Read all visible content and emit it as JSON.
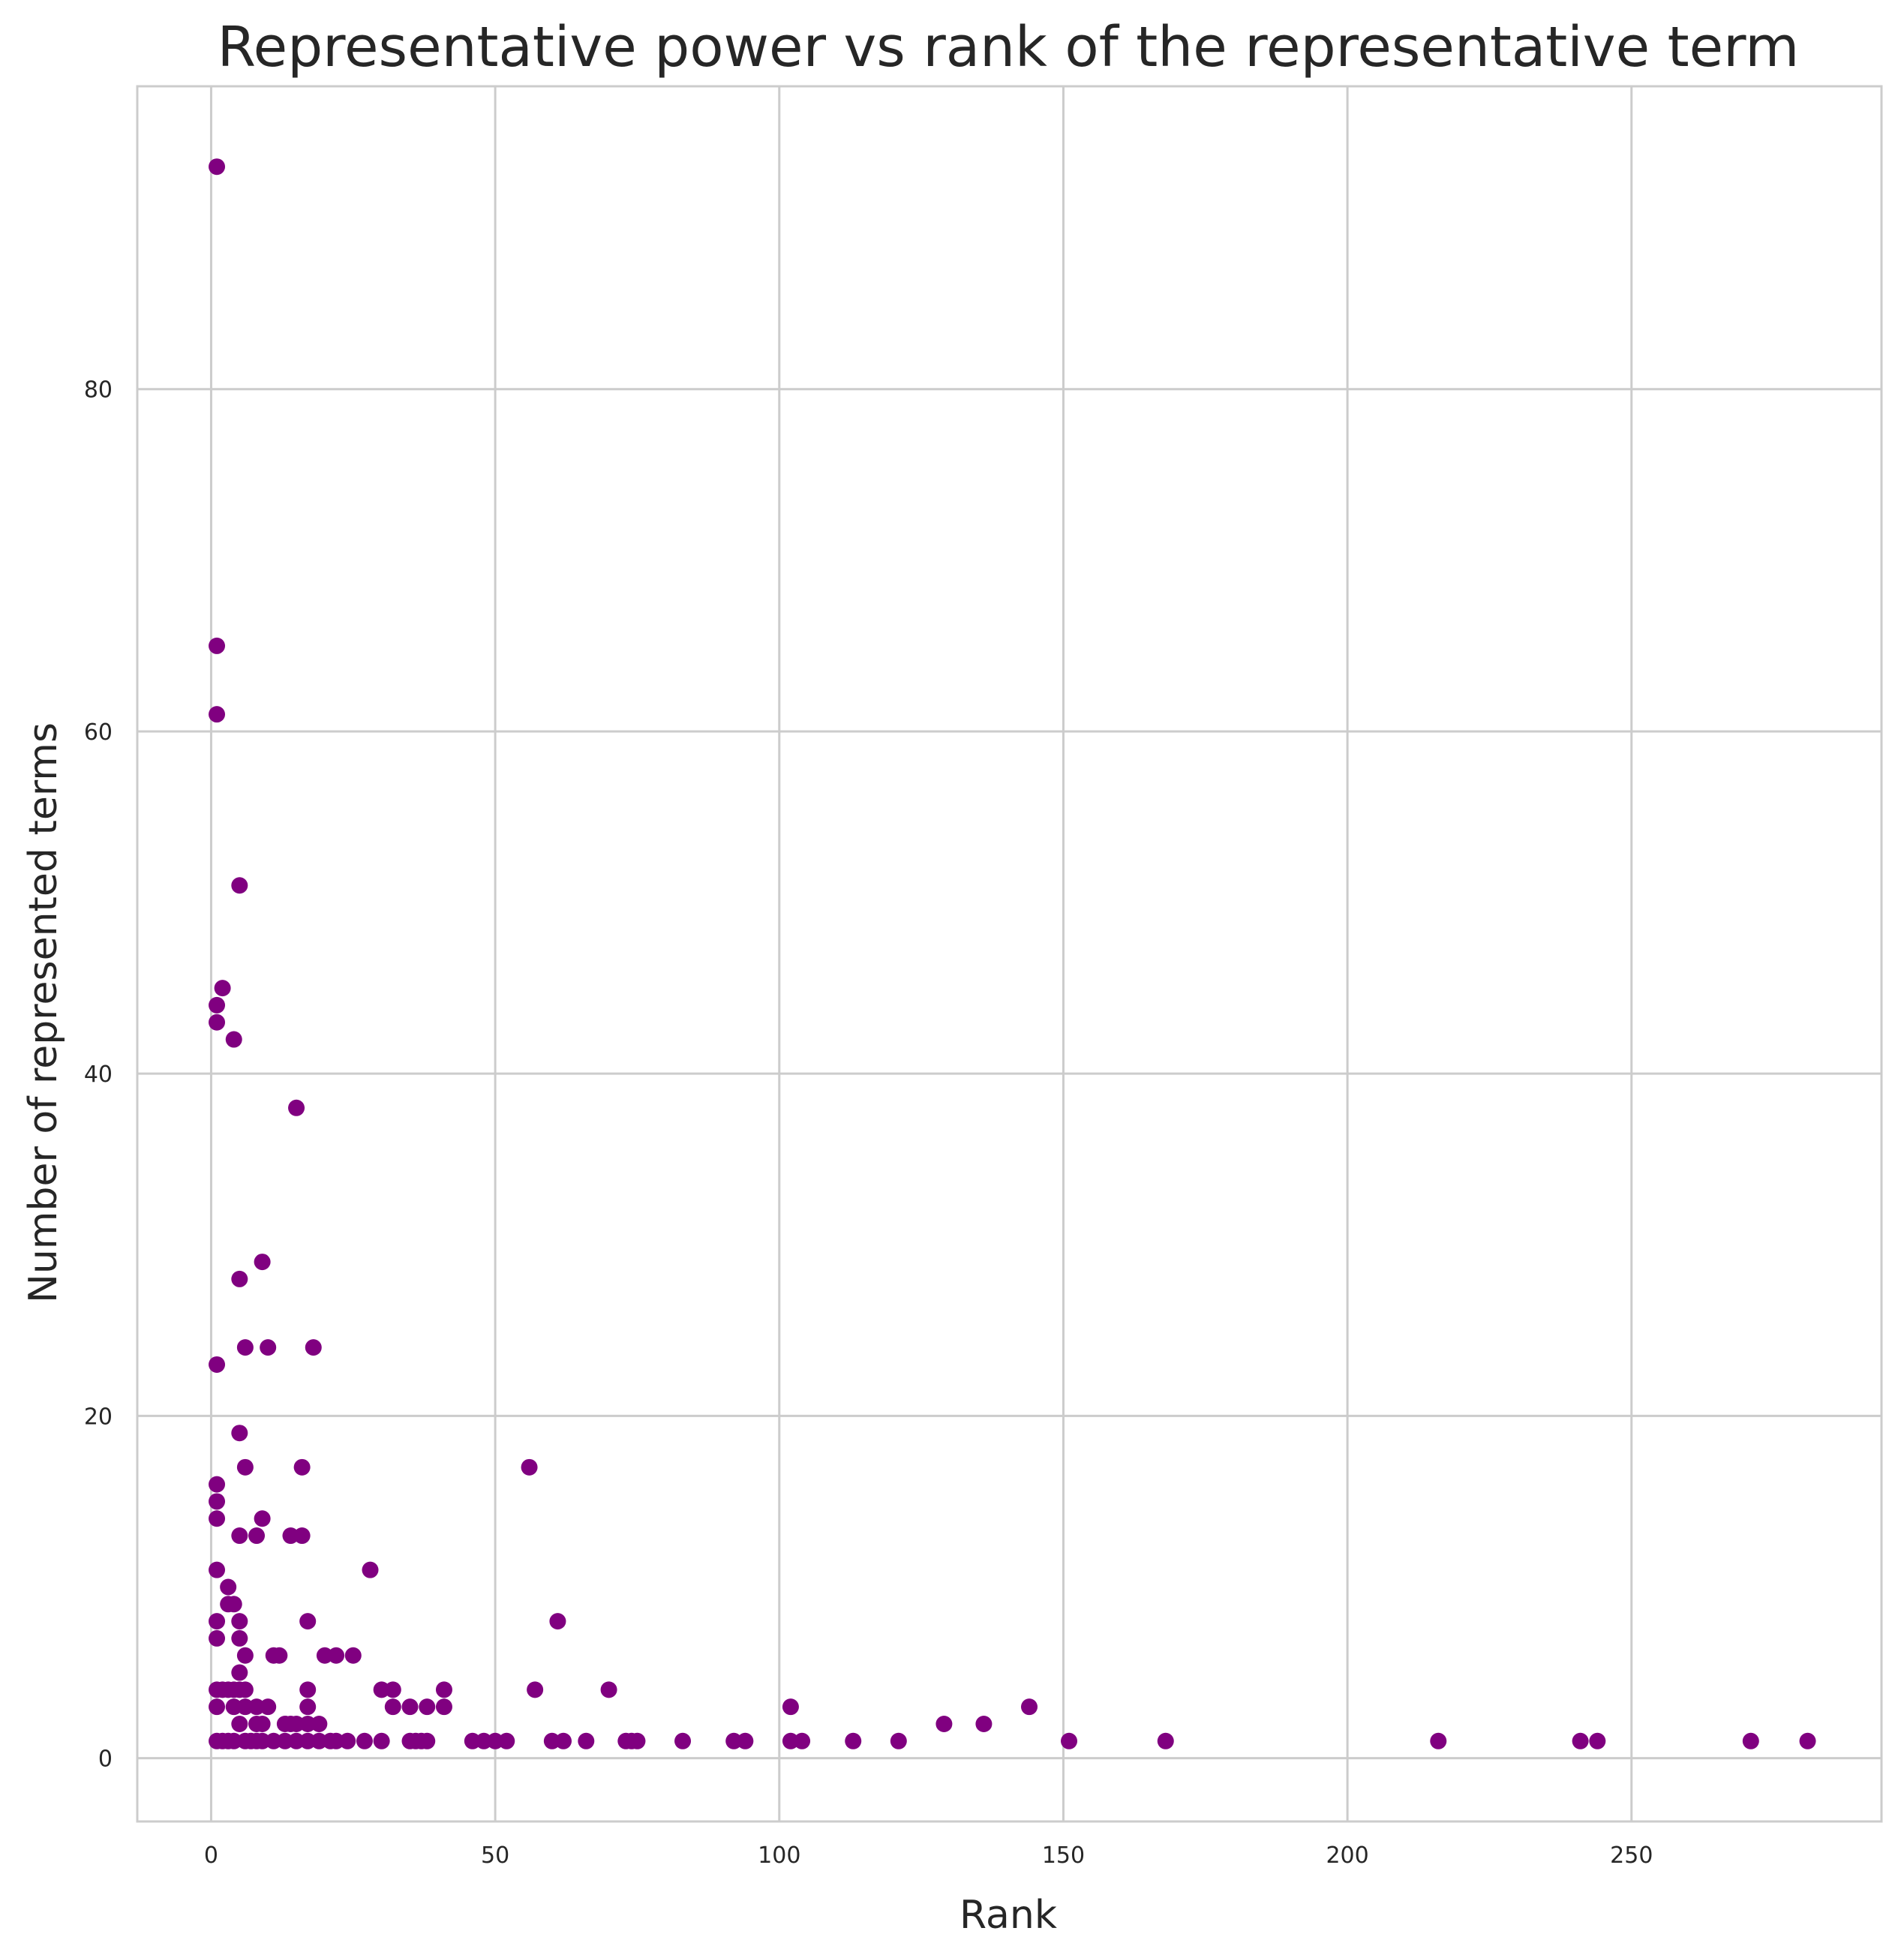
{
  "chart_data": {
    "type": "scatter",
    "title": "Representative power vs rank of the representative term",
    "xlabel": "Rank",
    "ylabel": "Number of represented terms",
    "xlim": [
      -13,
      294
    ],
    "ylim": [
      -3.7,
      97.7
    ],
    "xticks": [
      0,
      50,
      100,
      150,
      200,
      250
    ],
    "yticks": [
      0,
      20,
      40,
      60,
      80
    ],
    "grid": true,
    "legend": "none",
    "marker_color": "#800080",
    "grid_color": "#cccccc",
    "series": [
      {
        "points": [
          [
            1,
            93
          ],
          [
            1,
            65
          ],
          [
            1,
            61
          ],
          [
            5,
            51
          ],
          [
            2,
            45
          ],
          [
            1,
            44
          ],
          [
            1,
            43
          ],
          [
            4,
            42
          ],
          [
            15,
            38
          ],
          [
            9,
            29
          ],
          [
            5,
            28
          ],
          [
            6,
            24
          ],
          [
            10,
            24
          ],
          [
            18,
            24
          ],
          [
            1,
            23
          ],
          [
            5,
            19
          ],
          [
            6,
            17
          ],
          [
            16,
            17
          ],
          [
            56,
            17
          ],
          [
            1,
            16
          ],
          [
            1,
            15
          ],
          [
            1,
            14
          ],
          [
            9,
            14
          ],
          [
            5,
            13
          ],
          [
            8,
            13
          ],
          [
            14,
            13
          ],
          [
            16,
            13
          ],
          [
            1,
            11
          ],
          [
            28,
            11
          ],
          [
            3,
            10
          ],
          [
            3,
            9
          ],
          [
            4,
            9
          ],
          [
            1,
            8
          ],
          [
            5,
            8
          ],
          [
            17,
            8
          ],
          [
            61,
            8
          ],
          [
            1,
            7
          ],
          [
            5,
            7
          ],
          [
            6,
            6
          ],
          [
            11,
            6
          ],
          [
            12,
            6
          ],
          [
            20,
            6
          ],
          [
            22,
            6
          ],
          [
            25,
            6
          ],
          [
            5,
            5
          ],
          [
            1,
            4
          ],
          [
            2,
            4
          ],
          [
            3,
            4
          ],
          [
            4,
            4
          ],
          [
            5,
            4
          ],
          [
            6,
            4
          ],
          [
            17,
            4
          ],
          [
            30,
            4
          ],
          [
            32,
            4
          ],
          [
            41,
            4
          ],
          [
            57,
            4
          ],
          [
            70,
            4
          ],
          [
            1,
            3
          ],
          [
            4,
            3
          ],
          [
            6,
            3
          ],
          [
            8,
            3
          ],
          [
            10,
            3
          ],
          [
            17,
            3
          ],
          [
            32,
            3
          ],
          [
            35,
            3
          ],
          [
            38,
            3
          ],
          [
            41,
            3
          ],
          [
            102,
            3
          ],
          [
            144,
            3
          ],
          [
            5,
            2
          ],
          [
            8,
            2
          ],
          [
            9,
            2
          ],
          [
            13,
            2
          ],
          [
            14,
            2
          ],
          [
            15,
            2
          ],
          [
            17,
            2
          ],
          [
            19,
            2
          ],
          [
            129,
            2
          ],
          [
            136,
            2
          ],
          [
            1,
            1
          ],
          [
            2,
            1
          ],
          [
            3,
            1
          ],
          [
            4,
            1
          ],
          [
            6,
            1
          ],
          [
            7,
            1
          ],
          [
            8,
            1
          ],
          [
            9,
            1
          ],
          [
            11,
            1
          ],
          [
            13,
            1
          ],
          [
            15,
            1
          ],
          [
            17,
            1
          ],
          [
            19,
            1
          ],
          [
            21,
            1
          ],
          [
            22,
            1
          ],
          [
            24,
            1
          ],
          [
            27,
            1
          ],
          [
            30,
            1
          ],
          [
            35,
            1
          ],
          [
            36,
            1
          ],
          [
            37,
            1
          ],
          [
            38,
            1
          ],
          [
            46,
            1
          ],
          [
            48,
            1
          ],
          [
            50,
            1
          ],
          [
            52,
            1
          ],
          [
            60,
            1
          ],
          [
            62,
            1
          ],
          [
            66,
            1
          ],
          [
            73,
            1
          ],
          [
            74,
            1
          ],
          [
            75,
            1
          ],
          [
            83,
            1
          ],
          [
            92,
            1
          ],
          [
            94,
            1
          ],
          [
            102,
            1
          ],
          [
            104,
            1
          ],
          [
            113,
            1
          ],
          [
            121,
            1
          ],
          [
            151,
            1
          ],
          [
            168,
            1
          ],
          [
            216,
            1
          ],
          [
            241,
            1
          ],
          [
            244,
            1
          ],
          [
            271,
            1
          ],
          [
            281,
            1
          ]
        ]
      }
    ]
  }
}
